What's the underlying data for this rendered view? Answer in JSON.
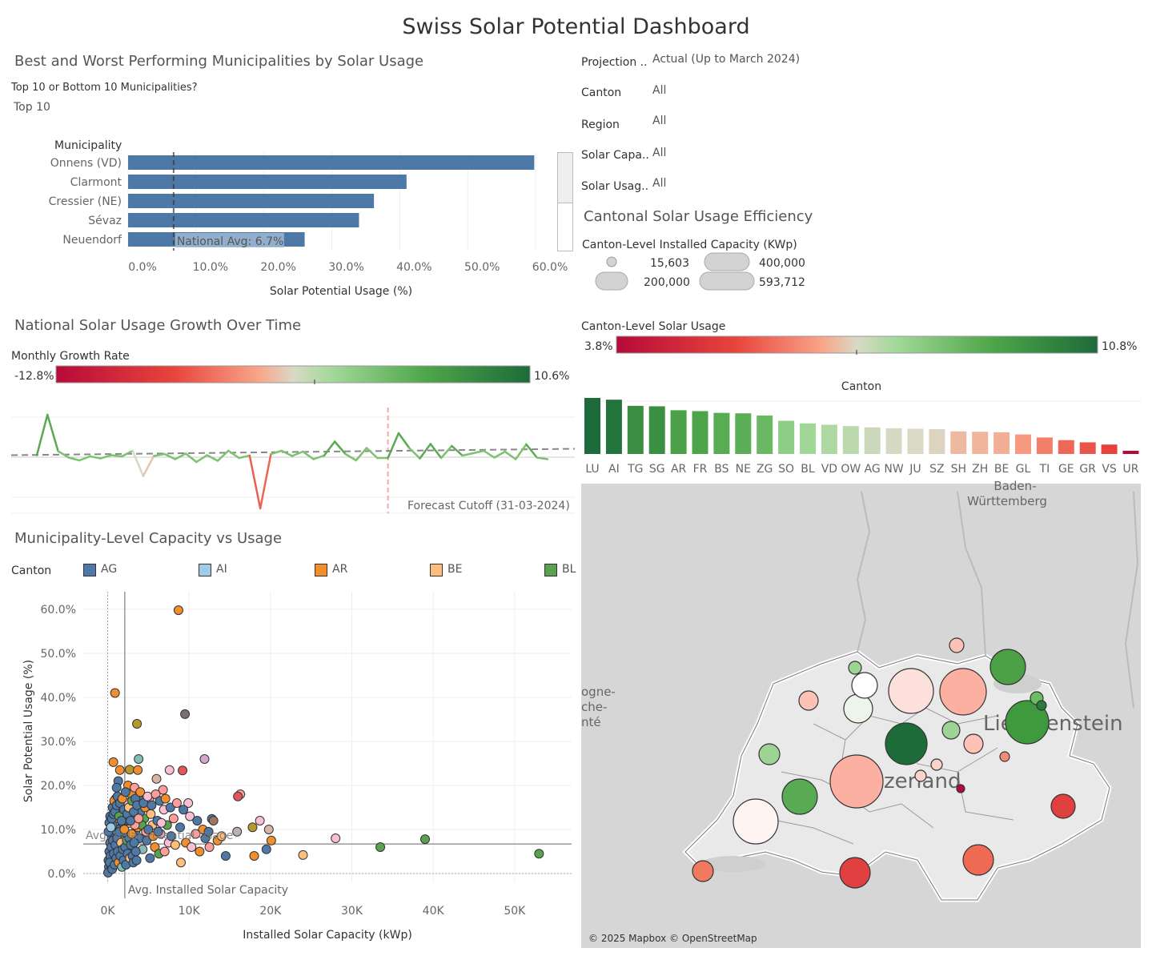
{
  "title": "Swiss Solar Potential Dashboard",
  "top_section": {
    "title": "Best and Worst Performing Municipalities by Solar Usage",
    "param_label": "Top 10 or Bottom 10 Municipalities?",
    "param_value": "Top 10"
  },
  "filters": [
    {
      "label": "Projection ..",
      "value": "Actual (Up to March 2024)"
    },
    {
      "label": "Canton",
      "value": "All"
    },
    {
      "label": "Region",
      "value": "All"
    },
    {
      "label": "Solar Capa..",
      "value": "All"
    },
    {
      "label": "Solar Usag..",
      "value": "All"
    }
  ],
  "canton_section": {
    "title": "Cantonal Solar Usage Efficiency",
    "size_legend_title": "Canton-Level Installed Capacity (KWp)",
    "size_legend": [
      "15,603",
      "200,000",
      "400,000",
      "593,712"
    ],
    "color_legend_title": "Canton-Level Solar Usage",
    "color_min": "3.8%",
    "color_max": "10.8%"
  },
  "growth_section": {
    "title": "National Solar Usage Growth Over Time",
    "legend_title": "Monthly Growth Rate",
    "legend_min": "-12.8%",
    "legend_max": "10.6%",
    "cutoff_label": "Forecast Cutoff (31-03-2024)"
  },
  "scatter_section": {
    "title": "Municipality-Level Capacity vs Usage",
    "legend_title": "Canton",
    "legend": [
      {
        "name": "AG",
        "color": "#4e79a7"
      },
      {
        "name": "AI",
        "color": "#a0cbe8"
      },
      {
        "name": "AR",
        "color": "#f28e2b"
      },
      {
        "name": "BE",
        "color": "#ffbe7d"
      },
      {
        "name": "BL",
        "color": "#59a14f"
      }
    ]
  },
  "map": {
    "attribution": "© 2025 Mapbox © OpenStreetMap",
    "labels": [
      "Baden-",
      "Württemberg",
      "ogne-",
      "che-",
      "nté",
      "Liechtenstein",
      "zerland"
    ]
  },
  "chart_data": [
    {
      "id": "top-municipalities",
      "type": "bar",
      "orientation": "horizontal",
      "ylabel": "Municipality",
      "xlabel": "Solar Potential Usage (%)",
      "categories": [
        "Onnens (VD)",
        "Clarmont",
        "Cressier (NE)",
        "Sévaz",
        "Neuendorf"
      ],
      "values": [
        59.8,
        41.0,
        36.2,
        34.0,
        26.0
      ],
      "xlim": [
        0,
        62
      ],
      "xticks": [
        "0.0%",
        "10.0%",
        "20.0%",
        "30.0%",
        "40.0%",
        "50.0%",
        "60.0%"
      ],
      "xtick_values": [
        0,
        10,
        20,
        30,
        40,
        50,
        60
      ],
      "reference_line": {
        "label": "National Avg: 6.7%",
        "value": 6.7
      },
      "bar_color": "#4e79a7"
    },
    {
      "id": "canton-usage",
      "type": "bar",
      "xlabel": "Canton",
      "categories": [
        "LU",
        "AI",
        "TG",
        "SG",
        "AR",
        "FR",
        "BS",
        "NE",
        "ZG",
        "SO",
        "BL",
        "VD",
        "OW",
        "AG",
        "NW",
        "JU",
        "SZ",
        "SH",
        "ZH",
        "BE",
        "GL",
        "TI",
        "GE",
        "GR",
        "VS",
        "UR"
      ],
      "values": [
        10.8,
        10.6,
        9.9,
        9.85,
        9.4,
        9.3,
        9.1,
        9.05,
        8.8,
        8.2,
        7.9,
        7.75,
        7.6,
        7.45,
        7.35,
        7.3,
        7.25,
        7.0,
        6.95,
        6.9,
        6.65,
        6.3,
        6.0,
        5.75,
        5.5,
        3.8
      ],
      "color_scale": {
        "min": 3.8,
        "max": 10.8
      }
    },
    {
      "id": "growth-over-time",
      "type": "line",
      "ylabel": "Monthly Growth Rate",
      "values": [
        0.5,
        10.6,
        1.5,
        -0.1,
        -0.8,
        0.2,
        -0.3,
        0.5,
        0.2,
        1.6,
        -4.7,
        0.3,
        0.8,
        -0.5,
        0.9,
        -1.2,
        0.5,
        -0.9,
        1.6,
        -0.2,
        0.4,
        -12.8,
        0.8,
        1.6,
        0.3,
        1.4,
        -0.5,
        0.4,
        3.9,
        0.8,
        -0.8,
        2.3,
        -0.2,
        -0.2,
        6.0,
        2.3,
        -0.3,
        3.3,
        -0.2,
        2.8,
        0.4,
        1.0,
        1.6,
        -0.1,
        1.4,
        -0.5,
        3.2,
        -0.1,
        -0.5
      ],
      "forecast_cutoff_index": 33,
      "average": 0.9,
      "ylim": [
        -13.5,
        12
      ]
    },
    {
      "id": "capacity-vs-usage",
      "type": "scatter",
      "xlabel": "Installed Solar Capacity (kWp)",
      "ylabel": "Solar Potential Usage (%)",
      "xlim": [
        -3000,
        57000
      ],
      "ylim": [
        -2,
        64
      ],
      "xticks": [
        "0K",
        "10K",
        "20K",
        "30K",
        "40K",
        "50K"
      ],
      "xtick_values": [
        0,
        10000,
        20000,
        30000,
        40000,
        50000
      ],
      "yticks": [
        "0.0%",
        "10.0%",
        "20.0%",
        "30.0%",
        "40.0%",
        "50.0%",
        "60.0%"
      ],
      "ytick_values": [
        0,
        10,
        20,
        30,
        40,
        50,
        60
      ],
      "avg_usage": {
        "label": "Avg. Solar Potential Usage",
        "value": 6.7
      },
      "avg_capacity": {
        "label": "Avg. Installed Solar Capacity",
        "value": 2100
      },
      "points": [
        [
          8700,
          59.8,
          "#f28e2b"
        ],
        [
          900,
          41.0,
          "#f28e2b"
        ],
        [
          3600,
          34.0,
          "#b6992d"
        ],
        [
          9500,
          36.2,
          "#79706e"
        ],
        [
          11900,
          26.0,
          "#d4a6c8"
        ],
        [
          3800,
          26.0,
          "#86bcb6"
        ],
        [
          700,
          25.3,
          "#f28e2b"
        ],
        [
          1500,
          23.5,
          "#f28e2b"
        ],
        [
          2700,
          23.6,
          "#b6992d"
        ],
        [
          3700,
          23.5,
          "#f28e2b"
        ],
        [
          7600,
          23.5,
          "#fabfd2"
        ],
        [
          9200,
          23.4,
          "#e15759"
        ],
        [
          6000,
          21.5,
          "#d7b5a6"
        ],
        [
          1300,
          21.0,
          "#4e79a7"
        ],
        [
          2500,
          20.0,
          "#f28e2b"
        ],
        [
          1100,
          19.5,
          "#4e79a7"
        ],
        [
          6800,
          19.0,
          "#ff9d9a"
        ],
        [
          16300,
          18.0,
          "#ff9d9a"
        ],
        [
          16000,
          17.5,
          "#e15759"
        ],
        [
          1000,
          17.0,
          "#4e79a7"
        ],
        [
          4100,
          16.5,
          "#4e79a7"
        ],
        [
          5100,
          16.8,
          "#ff9d9a"
        ],
        [
          9900,
          16.0,
          "#fabfd2"
        ],
        [
          12800,
          12.4,
          "#4e79a7"
        ],
        [
          13000,
          12.0,
          "#9d7660"
        ],
        [
          18700,
          12.0,
          "#fabfd2"
        ],
        [
          15900,
          9.5,
          "#bab0ac"
        ],
        [
          17800,
          10.5,
          "#b6992d"
        ],
        [
          19800,
          10.0,
          "#d7b5a6"
        ],
        [
          20100,
          7.5,
          "#f28e2b"
        ],
        [
          28000,
          8.0,
          "#fabfd2"
        ],
        [
          33500,
          6.0,
          "#59a14f"
        ],
        [
          39000,
          7.8,
          "#59a14f"
        ],
        [
          53000,
          4.5,
          "#59a14f"
        ],
        [
          24000,
          4.2,
          "#ffbe7d"
        ],
        [
          18000,
          4.0,
          "#f28e2b"
        ],
        [
          19500,
          5.5,
          "#4e79a7"
        ],
        [
          14500,
          4.0,
          "#4e79a7"
        ],
        [
          12500,
          6.0,
          "#ff9d9a"
        ],
        [
          9000,
          2.5,
          "#ffbe7d"
        ],
        [
          7500,
          7.0,
          "#fabfd2"
        ],
        [
          6500,
          9.0,
          "#d4a6c8"
        ],
        [
          5500,
          11.0,
          "#ffbe7d"
        ],
        [
          4500,
          12.5,
          "#59a14f"
        ],
        [
          3500,
          14.0,
          "#4e79a7"
        ],
        [
          2800,
          15.5,
          "#f28e2b"
        ],
        [
          2200,
          13.0,
          "#a0cbe8"
        ],
        [
          1800,
          11.5,
          "#4e79a7"
        ],
        [
          1200,
          10.0,
          "#4e79a7"
        ],
        [
          800,
          9.0,
          "#4e79a7"
        ],
        [
          500,
          8.0,
          "#4e79a7"
        ],
        [
          300,
          7.0,
          "#4e79a7"
        ],
        [
          200,
          5.0,
          "#4e79a7"
        ],
        [
          100,
          3.0,
          "#4e79a7"
        ],
        [
          150,
          1.5,
          "#4e79a7"
        ],
        [
          50,
          0.2,
          "#4e79a7"
        ],
        [
          400,
          2.0,
          "#4e79a7"
        ],
        [
          700,
          3.5,
          "#f28e2b"
        ],
        [
          900,
          5.5,
          "#4e79a7"
        ],
        [
          1400,
          6.0,
          "#ffbe7d"
        ],
        [
          1700,
          4.5,
          "#4e79a7"
        ],
        [
          2100,
          3.0,
          "#4e79a7"
        ],
        [
          2600,
          5.0,
          "#59a14f"
        ],
        [
          3100,
          6.5,
          "#ffbe7d"
        ],
        [
          3400,
          9.5,
          "#4e79a7"
        ],
        [
          3900,
          8.0,
          "#4e79a7"
        ],
        [
          4300,
          5.5,
          "#86bcb6"
        ],
        [
          4800,
          7.5,
          "#4e79a7"
        ],
        [
          5200,
          3.5,
          "#4e79a7"
        ],
        [
          5800,
          6.0,
          "#f28e2b"
        ],
        [
          6300,
          4.5,
          "#59a14f"
        ],
        [
          7000,
          5.0,
          "#ff9d9a"
        ],
        [
          7800,
          8.5,
          "#4e79a7"
        ],
        [
          8300,
          6.5,
          "#ffbe7d"
        ],
        [
          8900,
          10.5,
          "#4e79a7"
        ],
        [
          9600,
          7.0,
          "#f28e2b"
        ],
        [
          10300,
          6.0,
          "#fabfd2"
        ],
        [
          10800,
          9.0,
          "#ff9d9a"
        ],
        [
          11300,
          5.0,
          "#f28e2b"
        ],
        [
          12000,
          8.0,
          "#4e79a7"
        ],
        [
          13500,
          7.5,
          "#f28e2b"
        ],
        [
          1000,
          12.5,
          "#f28e2b"
        ],
        [
          1600,
          14.5,
          "#4e79a7"
        ],
        [
          2400,
          16.0,
          "#fabfd2"
        ],
        [
          2900,
          18.0,
          "#f28e2b"
        ],
        [
          3300,
          19.5,
          "#ff9d9a"
        ],
        [
          4000,
          14.0,
          "#4e79a7"
        ],
        [
          4600,
          15.0,
          "#f28e2b"
        ],
        [
          5300,
          13.5,
          "#ffbe7d"
        ],
        [
          6100,
          12.0,
          "#4e79a7"
        ],
        [
          6900,
          14.5,
          "#fabfd2"
        ],
        [
          7300,
          11.0,
          "#59a14f"
        ],
        [
          8100,
          12.5,
          "#ff9d9a"
        ],
        [
          600,
          11.0,
          "#4e79a7"
        ],
        [
          1300,
          8.5,
          "#f28e2b"
        ],
        [
          1900,
          7.5,
          "#a0cbe8"
        ],
        [
          2300,
          9.0,
          "#4e79a7"
        ],
        [
          2700,
          11.5,
          "#ffbe7d"
        ],
        [
          3200,
          12.5,
          "#4e79a7"
        ],
        [
          3700,
          10.5,
          "#f28e2b"
        ],
        [
          4200,
          11.0,
          "#59a14f"
        ],
        [
          4700,
          9.5,
          "#ff9d9a"
        ],
        [
          5000,
          10.0,
          "#4e79a7"
        ],
        [
          5600,
          8.5,
          "#f28e2b"
        ],
        [
          6200,
          9.5,
          "#4e79a7"
        ],
        [
          6600,
          11.5,
          "#fabfd2"
        ],
        [
          350,
          4.0,
          "#4e79a7"
        ],
        [
          250,
          2.5,
          "#4e79a7"
        ],
        [
          450,
          6.0,
          "#4e79a7"
        ],
        [
          550,
          1.0,
          "#4e79a7"
        ],
        [
          650,
          7.5,
          "#4e79a7"
        ],
        [
          750,
          4.5,
          "#4e79a7"
        ],
        [
          850,
          2.0,
          "#4e79a7"
        ],
        [
          950,
          6.5,
          "#4e79a7"
        ],
        [
          1050,
          3.5,
          "#4e79a7"
        ],
        [
          1150,
          8.0,
          "#4e79a7"
        ],
        [
          1250,
          5.0,
          "#4e79a7"
        ],
        [
          1350,
          2.5,
          "#f28e2b"
        ],
        [
          1450,
          9.5,
          "#4e79a7"
        ],
        [
          1550,
          4.0,
          "#4e79a7"
        ],
        [
          1650,
          7.0,
          "#ffbe7d"
        ],
        [
          1750,
          1.5,
          "#86bcb6"
        ],
        [
          1850,
          5.5,
          "#4e79a7"
        ],
        [
          1950,
          3.0,
          "#4e79a7"
        ],
        [
          2050,
          10.0,
          "#f28e2b"
        ],
        [
          2150,
          6.0,
          "#4e79a7"
        ],
        [
          2250,
          2.0,
          "#4e79a7"
        ],
        [
          2350,
          7.5,
          "#59a14f"
        ],
        [
          2450,
          4.5,
          "#4e79a7"
        ],
        [
          2550,
          12.0,
          "#4e79a7"
        ],
        [
          2650,
          8.0,
          "#4e79a7"
        ],
        [
          2750,
          3.5,
          "#ffbe7d"
        ],
        [
          2850,
          6.5,
          "#4e79a7"
        ],
        [
          2950,
          9.0,
          "#f28e2b"
        ],
        [
          3050,
          4.0,
          "#4e79a7"
        ],
        [
          3150,
          2.5,
          "#4e79a7"
        ],
        [
          3250,
          7.0,
          "#4e79a7"
        ],
        [
          3350,
          11.0,
          "#ff9d9a"
        ],
        [
          3450,
          5.0,
          "#4e79a7"
        ],
        [
          3550,
          3.0,
          "#4e79a7"
        ],
        [
          100,
          9.5,
          "#4e79a7"
        ],
        [
          200,
          11.5,
          "#4e79a7"
        ],
        [
          300,
          13.0,
          "#4e79a7"
        ],
        [
          400,
          10.5,
          "#a0cbe8"
        ],
        [
          500,
          12.5,
          "#4e79a7"
        ],
        [
          600,
          15.0,
          "#4e79a7"
        ],
        [
          700,
          13.5,
          "#4e79a7"
        ],
        [
          800,
          16.5,
          "#f28e2b"
        ],
        [
          900,
          14.0,
          "#4e79a7"
        ],
        [
          1100,
          15.5,
          "#4e79a7"
        ],
        [
          1200,
          17.5,
          "#4e79a7"
        ],
        [
          1400,
          13.0,
          "#59a14f"
        ],
        [
          1500,
          16.0,
          "#4e79a7"
        ],
        [
          1700,
          12.0,
          "#4e79a7"
        ],
        [
          1800,
          17.0,
          "#f28e2b"
        ],
        [
          2000,
          14.5,
          "#4e79a7"
        ],
        [
          2200,
          18.5,
          "#4e79a7"
        ],
        [
          2400,
          13.5,
          "#4e79a7"
        ],
        [
          2600,
          15.0,
          "#ffbe7d"
        ],
        [
          2800,
          12.0,
          "#4e79a7"
        ],
        [
          3000,
          16.5,
          "#59a14f"
        ],
        [
          3200,
          14.0,
          "#4e79a7"
        ],
        [
          3400,
          17.0,
          "#4e79a7"
        ],
        [
          3600,
          15.5,
          "#4e79a7"
        ],
        [
          3800,
          12.5,
          "#ff9d9a"
        ],
        [
          4000,
          18.5,
          "#f28e2b"
        ],
        [
          4400,
          16.0,
          "#4e79a7"
        ],
        [
          4900,
          17.5,
          "#fabfd2"
        ],
        [
          5400,
          15.5,
          "#4e79a7"
        ],
        [
          5900,
          18.0,
          "#ff9d9a"
        ],
        [
          6400,
          16.5,
          "#4e79a7"
        ],
        [
          7100,
          17.0,
          "#f28e2b"
        ],
        [
          7700,
          15.0,
          "#4e79a7"
        ],
        [
          8500,
          16.0,
          "#ff9d9a"
        ],
        [
          9300,
          14.5,
          "#4e79a7"
        ],
        [
          10100,
          13.0,
          "#fabfd2"
        ],
        [
          11000,
          12.0,
          "#4e79a7"
        ],
        [
          11700,
          10.0,
          "#f28e2b"
        ],
        [
          12400,
          9.5,
          "#4e79a7"
        ],
        [
          14000,
          8.5,
          "#ffbe7d"
        ]
      ]
    }
  ]
}
